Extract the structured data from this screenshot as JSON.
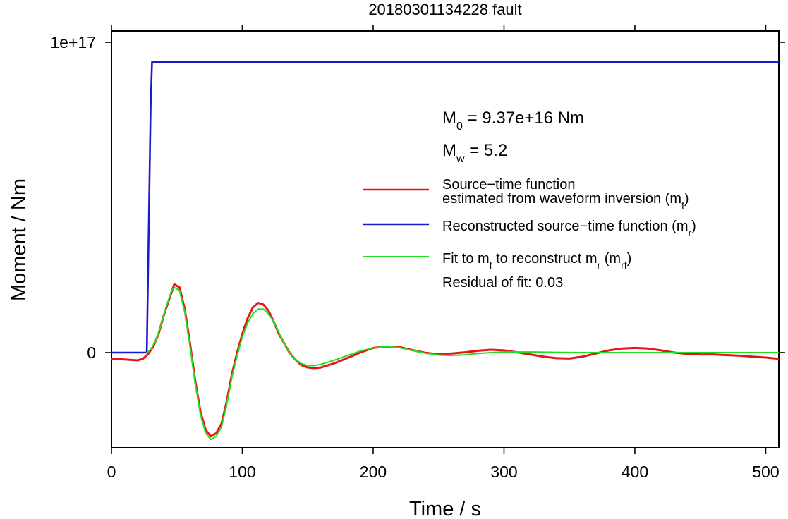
{
  "chart_data": {
    "type": "line",
    "title": "20180301134228 fault",
    "xlabel": "Time / s",
    "ylabel": "Moment / Nm",
    "xlim": [
      0,
      510
    ],
    "ylim": [
      -3.05e+16,
      1e+17
    ],
    "x_ticks": [
      0,
      100,
      200,
      300,
      400,
      500
    ],
    "x_tick_labels": [
      "0",
      "100",
      "200",
      "300",
      "400",
      "500"
    ],
    "y_ticks": [
      0,
      1e+17
    ],
    "y_tick_labels": [
      "0",
      "1e+17"
    ],
    "grid": false,
    "legend_position": "right",
    "annotations": {
      "m0": {
        "label": "M",
        "sub": "0",
        "rest": " = 9.37e+16 Nm"
      },
      "mw": {
        "label": "M",
        "sub": "w",
        "rest": " = 5.2"
      },
      "residual": "Residual of fit: 0.03"
    },
    "legend": [
      {
        "color": "#e8141b",
        "line1": "Source−time function",
        "line2_pre": "estimated from waveform inversion (m",
        "line2_sub": "f",
        "line2_post": ")"
      },
      {
        "color": "#1a1ad0",
        "pre": "Reconstructed source−time function (m",
        "sub": "r",
        "post": ")"
      },
      {
        "color": "#22e01f",
        "pre": "Fit to m",
        "sub": "f",
        "mid": " to reconstruct m",
        "sub2": "r",
        "mid2": " (m",
        "sub3": "rf",
        "post": ")"
      }
    ],
    "series": [
      {
        "name": "Source−time function estimated from waveform inversion (mf)",
        "color": "#e8141b",
        "x": [
          0,
          10,
          20,
          24,
          28,
          32,
          36,
          40,
          44,
          48,
          52,
          56,
          60,
          64,
          68,
          72,
          76,
          80,
          84,
          88,
          92,
          96,
          100,
          104,
          108,
          112,
          116,
          120,
          124,
          128,
          132,
          136,
          140,
          145,
          150,
          155,
          160,
          170,
          180,
          190,
          200,
          210,
          220,
          230,
          240,
          250,
          260,
          270,
          280,
          290,
          300,
          310,
          320,
          330,
          340,
          350,
          360,
          370,
          380,
          390,
          400,
          410,
          420,
          430,
          440,
          450,
          460,
          470,
          480,
          490,
          500,
          510
        ],
        "y": [
          -2000000000000000.0,
          -2200000000000000.0,
          -2500000000000000.0,
          -2000000000000000.0,
          -500000000000000.0,
          2000000000000000.0,
          6000000000000000.0,
          1.2e+16,
          1.7e+16,
          2.2e+16,
          2.1e+16,
          1.4e+16,
          3000000000000000.0,
          -9000000000000000.0,
          -1.9e+16,
          -2.5e+16,
          -2.7e+16,
          -2.6e+16,
          -2.3e+16,
          -1.6e+16,
          -7000000000000000.0,
          0.0,
          6000000000000000.0,
          1.1e+16,
          1.45e+16,
          1.6e+16,
          1.55e+16,
          1.35e+16,
          1e+16,
          6000000000000000.0,
          3000000000000000.0,
          0.0,
          -2000000000000000.0,
          -4000000000000000.0,
          -4800000000000000.0,
          -5000000000000000.0,
          -4800000000000000.0,
          -3500000000000000.0,
          -1800000000000000.0,
          0.0,
          1500000000000000.0,
          2000000000000000.0,
          1800000000000000.0,
          800000000000000.0,
          -100000000000000.0,
          -500000000000000.0,
          -300000000000000.0,
          100000000000000.0,
          600000000000000.0,
          900000000000000.0,
          700000000000000.0,
          100000000000000.0,
          -600000000000000.0,
          -1300000000000000.0,
          -1800000000000000.0,
          -1900000000000000.0,
          -1300000000000000.0,
          -300000000000000.0,
          700000000000000.0,
          1300000000000000.0,
          1500000000000000.0,
          1300000000000000.0,
          700000000000000.0,
          0.0,
          -400000000000000.0,
          -600000000000000.0,
          -600000000000000.0,
          -800000000000000.0,
          -1000000000000000.0,
          -1300000000000000.0,
          -1600000000000000.0,
          -2000000000000000.0
        ]
      },
      {
        "name": "Reconstructed source−time function (mr)",
        "color": "#1a1ad0",
        "x": [
          0,
          27,
          30,
          31,
          510
        ],
        "y": [
          0.0,
          0.0,
          8e+16,
          9.37e+16,
          9.37e+16
        ]
      },
      {
        "name": "Fit to mf to reconstruct mr (mrf)",
        "color": "#22e01f",
        "x": [
          27,
          30,
          34,
          38,
          42,
          46,
          48,
          52,
          56,
          60,
          64,
          68,
          72,
          76,
          80,
          84,
          88,
          92,
          96,
          100,
          104,
          108,
          112,
          116,
          120,
          124,
          128,
          132,
          136,
          140,
          145,
          150,
          155,
          160,
          170,
          180,
          190,
          200,
          210,
          220,
          230,
          240,
          250,
          260,
          270,
          280,
          290,
          300,
          320,
          340,
          360,
          380,
          400,
          420,
          440,
          460,
          480,
          500,
          510
        ],
        "y": [
          0.0,
          1000000000000000.0,
          4000000000000000.0,
          9000000000000000.0,
          1.5e+16,
          2e+16,
          2.1e+16,
          2e+16,
          1.3e+16,
          2000000000000000.0,
          -1e+16,
          -2e+16,
          -2.6e+16,
          -2.8e+16,
          -2.7e+16,
          -2.4e+16,
          -1.7e+16,
          -8000000000000000.0,
          -1000000000000000.0,
          5000000000000000.0,
          9500000000000000.0,
          1.25e+16,
          1.4e+16,
          1.4e+16,
          1.25e+16,
          1e+16,
          6500000000000000.0,
          3000000000000000.0,
          0.0,
          -2000000000000000.0,
          -3500000000000000.0,
          -4200000000000000.0,
          -4200000000000000.0,
          -3800000000000000.0,
          -2500000000000000.0,
          -1000000000000000.0,
          500000000000000.0,
          1500000000000000.0,
          2000000000000000.0,
          1600000000000000.0,
          700000000000000.0,
          -200000000000000.0,
          -800000000000000.0,
          -900000000000000.0,
          -700000000000000.0,
          -300000000000000.0,
          0.0,
          200000000000000.0,
          200000000000000.0,
          100000000000000.0,
          0.0,
          0.0,
          0.0,
          0.0,
          0.0,
          0.0,
          0.0,
          0.0,
          0.0
        ]
      }
    ]
  }
}
